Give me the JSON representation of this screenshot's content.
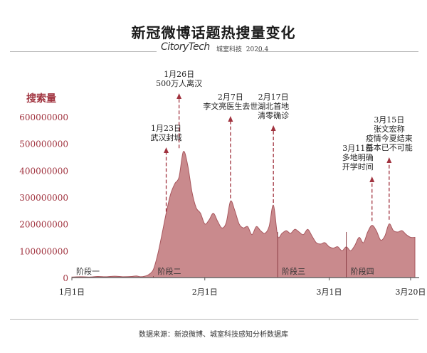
{
  "header": {
    "title": "新冠微博话题热搜量变化",
    "brand": "CitoryTech",
    "brand_sub": "城室科技",
    "date": "2020.4"
  },
  "source": "数据来源：新浪微博、城室科技感知分析数据库",
  "colors": {
    "area_fill": "#c98a8d",
    "area_stroke": "#a8575e",
    "accent": "#a0323e",
    "axis": "#555555"
  },
  "chart_data": {
    "type": "area",
    "ylabel": "搜索量",
    "y_ticks": [
      0,
      100000000,
      200000000,
      300000000,
      400000000,
      500000000,
      600000000
    ],
    "y_tick_labels": [
      "0",
      "100000000",
      "200000000",
      "300000000",
      "400000000",
      "500000000",
      "600000000"
    ],
    "ylim": [
      0,
      650000000
    ],
    "xlim": [
      "2020-01-01",
      "2020-03-22"
    ],
    "x_ticks": [
      "2020-01-01",
      "2020-02-01",
      "2020-03-01",
      "2020-03-20"
    ],
    "x_tick_labels": [
      "1月1日",
      "2月1日",
      "3月1日",
      "3月20日"
    ],
    "series": [
      {
        "values": [
          [
            "2020-01-01",
            2000000
          ],
          [
            "2020-01-03",
            3000000
          ],
          [
            "2020-01-05",
            2000000
          ],
          [
            "2020-01-07",
            4000000
          ],
          [
            "2020-01-09",
            3000000
          ],
          [
            "2020-01-11",
            5000000
          ],
          [
            "2020-01-13",
            3000000
          ],
          [
            "2020-01-15",
            4000000
          ],
          [
            "2020-01-16",
            6000000
          ],
          [
            "2020-01-17",
            3000000
          ],
          [
            "2020-01-18",
            5000000
          ],
          [
            "2020-01-19",
            12000000
          ],
          [
            "2020-01-20",
            30000000
          ],
          [
            "2020-01-21",
            85000000
          ],
          [
            "2020-01-22",
            160000000
          ],
          [
            "2020-01-23",
            240000000
          ],
          [
            "2020-01-24",
            310000000
          ],
          [
            "2020-01-25",
            350000000
          ],
          [
            "2020-01-26",
            375000000
          ],
          [
            "2020-01-27",
            470000000
          ],
          [
            "2020-01-28",
            420000000
          ],
          [
            "2020-01-29",
            320000000
          ],
          [
            "2020-01-30",
            260000000
          ],
          [
            "2020-01-31",
            240000000
          ],
          [
            "2020-02-01",
            200000000
          ],
          [
            "2020-02-02",
            215000000
          ],
          [
            "2020-02-03",
            240000000
          ],
          [
            "2020-02-04",
            210000000
          ],
          [
            "2020-02-05",
            185000000
          ],
          [
            "2020-02-06",
            205000000
          ],
          [
            "2020-02-07",
            285000000
          ],
          [
            "2020-02-08",
            250000000
          ],
          [
            "2020-02-09",
            200000000
          ],
          [
            "2020-02-10",
            185000000
          ],
          [
            "2020-02-11",
            190000000
          ],
          [
            "2020-02-12",
            160000000
          ],
          [
            "2020-02-13",
            190000000
          ],
          [
            "2020-02-14",
            175000000
          ],
          [
            "2020-02-15",
            165000000
          ],
          [
            "2020-02-16",
            190000000
          ],
          [
            "2020-02-17",
            270000000
          ],
          [
            "2020-02-18",
            155000000
          ],
          [
            "2020-02-19",
            165000000
          ],
          [
            "2020-02-20",
            175000000
          ],
          [
            "2020-02-21",
            165000000
          ],
          [
            "2020-02-22",
            180000000
          ],
          [
            "2020-02-23",
            170000000
          ],
          [
            "2020-02-24",
            160000000
          ],
          [
            "2020-02-25",
            180000000
          ],
          [
            "2020-02-26",
            155000000
          ],
          [
            "2020-02-27",
            130000000
          ],
          [
            "2020-02-28",
            125000000
          ],
          [
            "2020-02-29",
            130000000
          ],
          [
            "2020-03-01",
            115000000
          ],
          [
            "2020-03-02",
            110000000
          ],
          [
            "2020-03-03",
            115000000
          ],
          [
            "2020-03-04",
            100000000
          ],
          [
            "2020-03-05",
            115000000
          ],
          [
            "2020-03-06",
            100000000
          ],
          [
            "2020-03-07",
            120000000
          ],
          [
            "2020-03-08",
            150000000
          ],
          [
            "2020-03-09",
            130000000
          ],
          [
            "2020-03-10",
            170000000
          ],
          [
            "2020-03-11",
            195000000
          ],
          [
            "2020-03-12",
            175000000
          ],
          [
            "2020-03-13",
            140000000
          ],
          [
            "2020-03-14",
            155000000
          ],
          [
            "2020-03-15",
            200000000
          ],
          [
            "2020-03-16",
            175000000
          ],
          [
            "2020-03-17",
            170000000
          ],
          [
            "2020-03-18",
            175000000
          ],
          [
            "2020-03-19",
            160000000
          ],
          [
            "2020-03-20",
            150000000
          ],
          [
            "2020-03-21",
            150000000
          ]
        ]
      }
    ],
    "phases": [
      {
        "label": "阶段一",
        "start": "2020-01-01"
      },
      {
        "label": "阶段二",
        "start": "2020-01-20"
      },
      {
        "label": "阶段三",
        "start": "2020-02-18"
      },
      {
        "label": "阶段四",
        "start": "2020-03-05"
      }
    ],
    "annotations": [
      {
        "date": "2020-01-23",
        "lines": [
          "1月23日",
          "武汉封城"
        ],
        "value": 235000000
      },
      {
        "date": "2020-01-26",
        "lines": [
          "1月26日",
          "500万人离汉"
        ],
        "value": 472000000
      },
      {
        "date": "2020-02-07",
        "lines": [
          "2月7日",
          "李文亮医生去世"
        ],
        "value": 285000000
      },
      {
        "date": "2020-02-17",
        "lines": [
          "2月17日",
          "湖北首地",
          "清零确诊"
        ],
        "value": 268000000
      },
      {
        "date": "2020-03-11",
        "lines": [
          "3月11日",
          "多地明确",
          "开学时间"
        ],
        "value": 200000000
      },
      {
        "date": "2020-03-15",
        "lines": [
          "3月15日",
          "张文宏称",
          "疫情今夏结束",
          "基本已不可能"
        ],
        "value": 205000000
      }
    ]
  }
}
